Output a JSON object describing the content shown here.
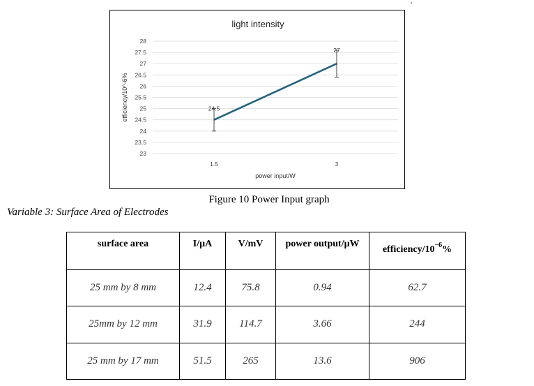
{
  "chart_data": {
    "type": "line",
    "title": "light intensity",
    "xlabel": "power input/W",
    "ylabel": "efficiency/10^-6%",
    "categories": [
      "1.5",
      "3"
    ],
    "values": [
      24.5,
      27
    ],
    "data_labels": [
      "24.5",
      "27"
    ],
    "error": [
      0.5,
      0.6
    ],
    "ylim": [
      23,
      28
    ],
    "yticks": [
      "23",
      "23.5",
      "24",
      "24.5",
      "25",
      "25.5",
      "26",
      "26.5",
      "27",
      "27.5",
      "28"
    ],
    "grid": true,
    "line_color": "#24627f"
  },
  "caption": "Figure 10 Power Input graph",
  "section_title": "Variable 3: Surface Area of Electrodes",
  "table": {
    "headers": {
      "surface_area": "surface area",
      "current": "I/μA",
      "voltage": "V/mV",
      "power": "power output/μW",
      "efficiency_prefix": "efficiency/10",
      "efficiency_exp": "−6",
      "efficiency_suffix": "%"
    },
    "rows": [
      [
        "25 mm by 8 mm",
        "12.4",
        "75.8",
        "0.94",
        "62.7"
      ],
      [
        "25mm by 12 mm",
        "31.9",
        "114.7",
        "3.66",
        "244"
      ],
      [
        "25 mm by 17 mm",
        "51.5",
        "265",
        "13.6",
        "906"
      ]
    ]
  }
}
